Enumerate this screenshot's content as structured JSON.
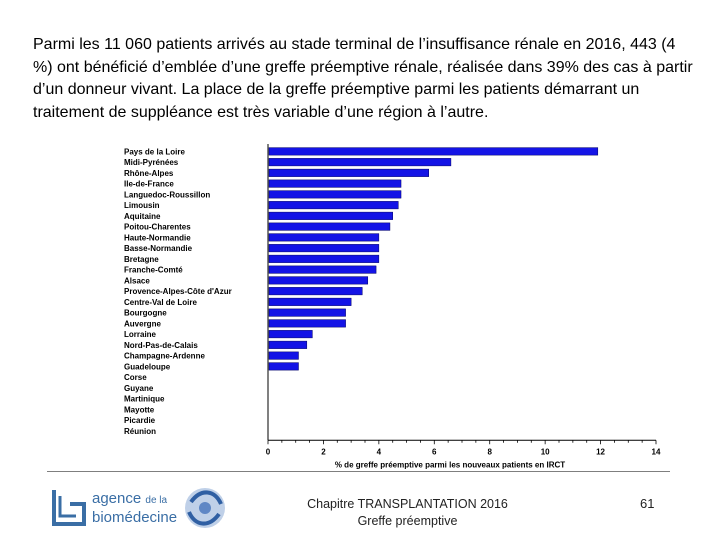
{
  "intro_text": "Parmi les 11 060 patients arrivés au stade terminal de l’insuffisance rénale en 2016, 443 (4 %) ont bénéficié d’emblée d’une greffe préemptive rénale, réalisée dans 39% des cas à partir d’un donneur vivant. La place de la greffe préemptive parmi les patients démarrant un traitement de suppléance est très variable d’une région à l’autre.",
  "chart_data": {
    "type": "bar",
    "orientation": "horizontal",
    "categories": [
      "Pays de la Loire",
      "Midi-Pyrénées",
      "Rhône-Alpes",
      "Ile-de-France",
      "Languedoc-Roussillon",
      "Limousin",
      "Aquitaine",
      "Poitou-Charentes",
      "Haute-Normandie",
      "Basse-Normandie",
      "Bretagne",
      "Franche-Comté",
      "Alsace",
      "Provence-Alpes-Côte d'Azur",
      "Centre-Val de Loire",
      "Bourgogne",
      "Auvergne",
      "Lorraine",
      "Nord-Pas-de-Calais",
      "Champagne-Ardenne",
      "Guadeloupe",
      "Corse",
      "Guyane",
      "Martinique",
      "Mayotte",
      "Picardie",
      "Réunion"
    ],
    "values": [
      11.9,
      6.6,
      5.8,
      4.8,
      4.8,
      4.7,
      4.5,
      4.4,
      4.0,
      4.0,
      4.0,
      3.9,
      3.6,
      3.4,
      3.0,
      2.8,
      2.8,
      1.6,
      1.4,
      1.1,
      1.1,
      0,
      0,
      0,
      0,
      0,
      0
    ],
    "xlim": [
      0,
      14
    ],
    "xticks": [
      "0",
      "2",
      "4",
      "6",
      "8",
      "10",
      "12",
      "14"
    ],
    "xlabel": "% de greffe préemptive parmi les nouveaux patients en IRCT",
    "bar_color": "#1414e6"
  },
  "footer": {
    "logo_line1": "agence",
    "logo_line1_small": "de la",
    "logo_line2": "biomédecine",
    "center_line1": "Chapitre TRANSPLANTATION 2016",
    "center_line2": "Greffe préemptive",
    "page_number": "61"
  }
}
